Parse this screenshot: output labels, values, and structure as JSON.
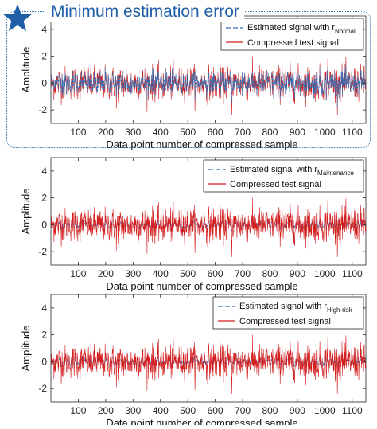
{
  "highlight": {
    "title": "Minimum estimation error",
    "color": "#1f5fa8"
  },
  "chart_data": [
    {
      "type": "line",
      "xlabel": "Data point number of compressed sample",
      "ylabel": "Amplitude",
      "xlim": [
        0,
        1150
      ],
      "ylim": [
        -3,
        5
      ],
      "xticks": [
        100,
        200,
        300,
        400,
        500,
        600,
        700,
        800,
        900,
        1000,
        1100
      ],
      "yticks": [
        -2,
        0,
        2,
        4
      ],
      "grid": false,
      "legend_position": "top-right",
      "series": [
        {
          "name": "Estimated signal with r",
          "subscript": "Normal",
          "color": "#2e6fb8",
          "style": "dashed",
          "description": "nearly coincides with test signal; std about 0.6"
        },
        {
          "name": "Compressed test signal",
          "color": "#d41f1f",
          "style": "solid",
          "description": "noise-like signal, mean 0, range about -2.3 to 2"
        }
      ]
    },
    {
      "type": "line",
      "xlabel": "Data point number of compressed sample",
      "ylabel": "Amplitude",
      "xlim": [
        0,
        1150
      ],
      "ylim": [
        -3,
        5
      ],
      "xticks": [
        100,
        200,
        300,
        400,
        500,
        600,
        700,
        800,
        900,
        1000,
        1100
      ],
      "yticks": [
        -2,
        0,
        2,
        4
      ],
      "grid": false,
      "legend_position": "top-right",
      "series": [
        {
          "name": "Estimated signal with r",
          "subscript": "Maintenance",
          "color": "#2e6fb8",
          "style": "dashed",
          "description": "std about 0.2, mostly hidden"
        },
        {
          "name": "Compressed test signal",
          "color": "#d41f1f",
          "style": "solid",
          "description": "noise-like signal, mean 0, range about -2.3 to 2"
        }
      ]
    },
    {
      "type": "line",
      "xlabel": "Data point number of compressed sample",
      "ylabel": "Amplitude",
      "xlim": [
        0,
        1150
      ],
      "ylim": [
        -3,
        5
      ],
      "xticks": [
        100,
        200,
        300,
        400,
        500,
        600,
        700,
        800,
        900,
        1000,
        1100
      ],
      "yticks": [
        -2,
        0,
        2,
        4
      ],
      "grid": false,
      "legend_position": "top-right",
      "series": [
        {
          "name": "Estimated signal with r",
          "subscript": "High-risk",
          "color": "#2e6fb8",
          "style": "dashed",
          "description": "std about 0.2, mostly hidden"
        },
        {
          "name": "Compressed test signal",
          "color": "#d41f1f",
          "style": "solid",
          "description": "noise-like signal, mean 0, range about -2.3 to 2"
        }
      ]
    }
  ]
}
